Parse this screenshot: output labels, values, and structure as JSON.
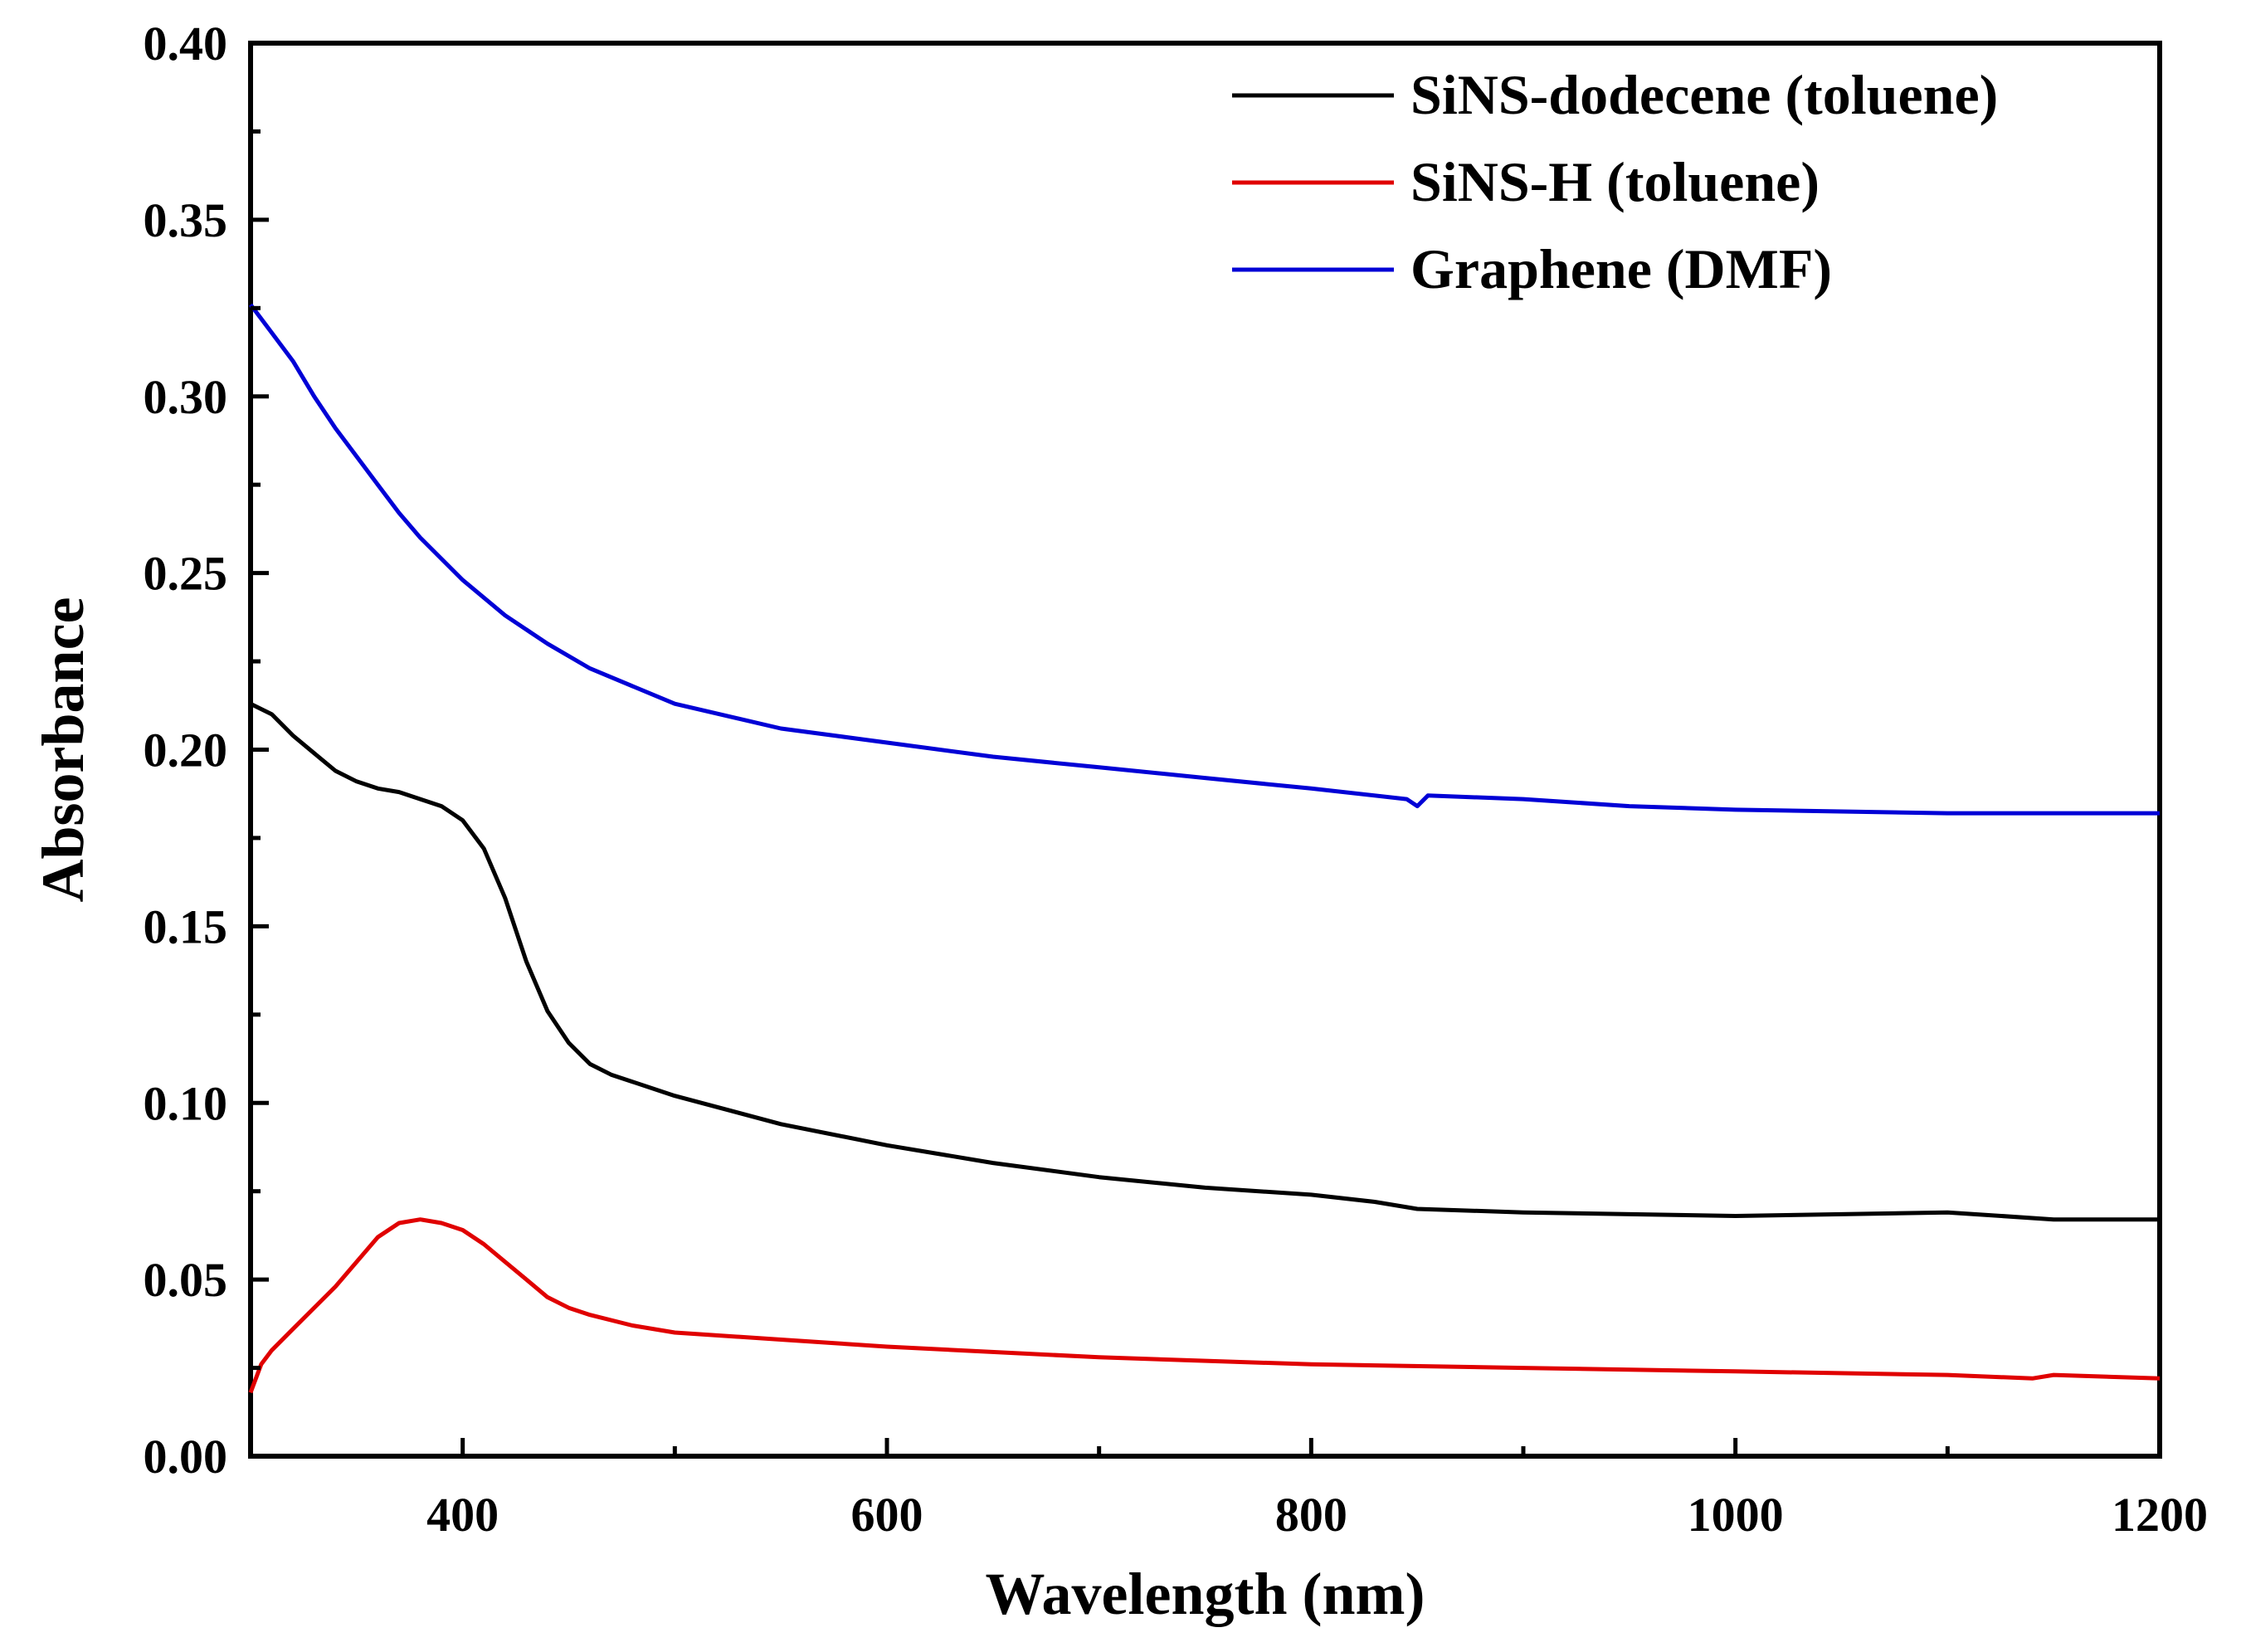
{
  "chart_data": {
    "type": "line",
    "title": "",
    "xlabel": "Wavelength (nm)",
    "ylabel": "Absorbance",
    "xlim": [
      300,
      1200
    ],
    "ylim": [
      0.0,
      0.4
    ],
    "xticks": [
      400,
      600,
      800,
      1000,
      1200
    ],
    "xtick_labels": [
      "400",
      "600",
      "800",
      "1000",
      "1200"
    ],
    "yticks": [
      0.0,
      0.05,
      0.1,
      0.15,
      0.2,
      0.25,
      0.3,
      0.35,
      0.4
    ],
    "ytick_labels": [
      "0.00",
      "0.05",
      "0.10",
      "0.15",
      "0.20",
      "0.25",
      "0.30",
      "0.35",
      "0.40"
    ],
    "grid": false,
    "legend_position": "top-right",
    "series": [
      {
        "name": "SiNS-dodecene (toluene)",
        "color": "#000000",
        "x": [
          300,
          310,
          320,
          330,
          340,
          350,
          360,
          370,
          380,
          390,
          400,
          410,
          420,
          430,
          440,
          450,
          460,
          470,
          480,
          500,
          550,
          600,
          650,
          700,
          750,
          800,
          830,
          850,
          900,
          1000,
          1100,
          1150,
          1200
        ],
        "y": [
          0.213,
          0.21,
          0.204,
          0.199,
          0.194,
          0.191,
          0.189,
          0.188,
          0.186,
          0.184,
          0.18,
          0.172,
          0.158,
          0.14,
          0.126,
          0.117,
          0.111,
          0.108,
          0.106,
          0.102,
          0.094,
          0.088,
          0.083,
          0.079,
          0.076,
          0.074,
          0.072,
          0.07,
          0.069,
          0.068,
          0.069,
          0.067,
          0.067
        ]
      },
      {
        "name": "SiNS-H (toluene)",
        "color": "#e00000",
        "x": [
          300,
          305,
          310,
          320,
          340,
          360,
          370,
          380,
          390,
          400,
          410,
          420,
          430,
          440,
          450,
          460,
          480,
          500,
          550,
          600,
          700,
          800,
          900,
          1000,
          1100,
          1140,
          1150,
          1200
        ],
        "y": [
          0.018,
          0.026,
          0.03,
          0.036,
          0.048,
          0.062,
          0.066,
          0.067,
          0.066,
          0.064,
          0.06,
          0.055,
          0.05,
          0.045,
          0.042,
          0.04,
          0.037,
          0.035,
          0.033,
          0.031,
          0.028,
          0.026,
          0.025,
          0.024,
          0.023,
          0.022,
          0.023,
          0.022
        ]
      },
      {
        "name": "Graphene (DMF)",
        "color": "#0000d6",
        "x": [
          300,
          310,
          320,
          330,
          340,
          350,
          360,
          370,
          380,
          400,
          420,
          440,
          460,
          480,
          500,
          550,
          600,
          650,
          700,
          750,
          800,
          845,
          850,
          855,
          900,
          950,
          1000,
          1100,
          1200
        ],
        "y": [
          0.326,
          0.318,
          0.31,
          0.3,
          0.291,
          0.283,
          0.275,
          0.267,
          0.26,
          0.248,
          0.238,
          0.23,
          0.223,
          0.218,
          0.213,
          0.206,
          0.202,
          0.198,
          0.195,
          0.192,
          0.189,
          0.186,
          0.184,
          0.187,
          0.186,
          0.184,
          0.183,
          0.182,
          0.182
        ]
      }
    ]
  }
}
